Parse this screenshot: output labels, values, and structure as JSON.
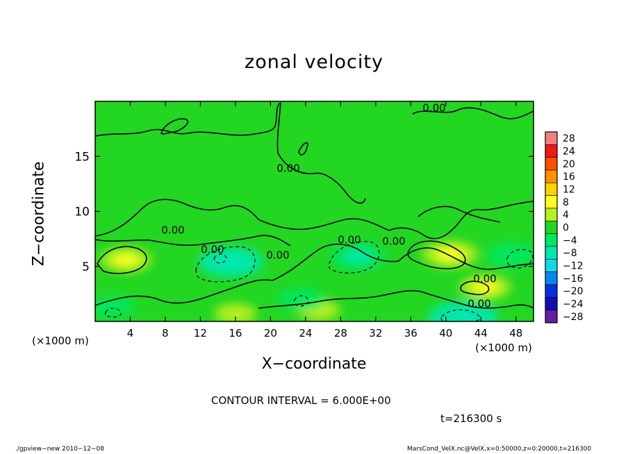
{
  "chart_data": {
    "type": "heatmap",
    "title": "zonal velocity",
    "xlabel": "X−coordinate",
    "ylabel": "Z−coordinate",
    "x_unit_label": "(×1000 m)",
    "x_ticks": [
      4,
      8,
      12,
      16,
      20,
      24,
      28,
      32,
      36,
      40,
      44,
      48
    ],
    "y_ticks": [
      5,
      10,
      15
    ],
    "xlim": [
      0,
      50
    ],
    "ylim": [
      0,
      20
    ],
    "colorbar": {
      "levels": [
        28,
        24,
        20,
        16,
        12,
        8,
        4,
        0,
        -4,
        -8,
        -12,
        -16,
        -20,
        -24,
        -28
      ],
      "level_labels": [
        "28",
        "24",
        "20",
        "16",
        "12",
        "8",
        "4",
        "0",
        "−4",
        "−8",
        "−12",
        "−16",
        "−20",
        "−24",
        "−28"
      ],
      "colors": [
        "#f08080",
        "#f01818",
        "#ff5000",
        "#ff9000",
        "#ffd200",
        "#ffff20",
        "#b8f020",
        "#20d820",
        "#00e860",
        "#00e8b0",
        "#10d8e8",
        "#0088f0",
        "#0030e0",
        "#1010b0",
        "#6020a0"
      ]
    },
    "contour_label": "0.00",
    "contour_interval_text": "CONTOUR INTERVAL = 6.000E+00",
    "time_text": "t=216300 s",
    "field_features": [
      {
        "kind": "positive",
        "x": 3.5,
        "z": 5.6,
        "value": 6
      },
      {
        "kind": "positive",
        "x": 40.5,
        "z": 6.1,
        "value": 7
      },
      {
        "kind": "positive",
        "x": 44.5,
        "z": 3.1,
        "value": 6
      },
      {
        "kind": "positive",
        "x": 25.5,
        "z": 1.0,
        "value": 4
      },
      {
        "kind": "positive",
        "x": 16.0,
        "z": 0.7,
        "value": 4
      },
      {
        "kind": "negative",
        "x": 15.5,
        "z": 5.4,
        "value": -9
      },
      {
        "kind": "negative",
        "x": 30.0,
        "z": 5.9,
        "value": -7
      },
      {
        "kind": "negative",
        "x": 42.0,
        "z": 0.4,
        "value": -10
      },
      {
        "kind": "negative",
        "x": 47.5,
        "z": 6.0,
        "value": -6
      },
      {
        "kind": "negative",
        "x": 23.5,
        "z": 2.0,
        "value": -5
      },
      {
        "kind": "negative",
        "x": 2.0,
        "z": 1.3,
        "value": -4
      }
    ]
  },
  "footer": {
    "left": "./gpview−new   2010−12−08",
    "right": "MarsCond_VelX.nc@VelX,x=0:50000,z=0:20000,t=216300"
  }
}
